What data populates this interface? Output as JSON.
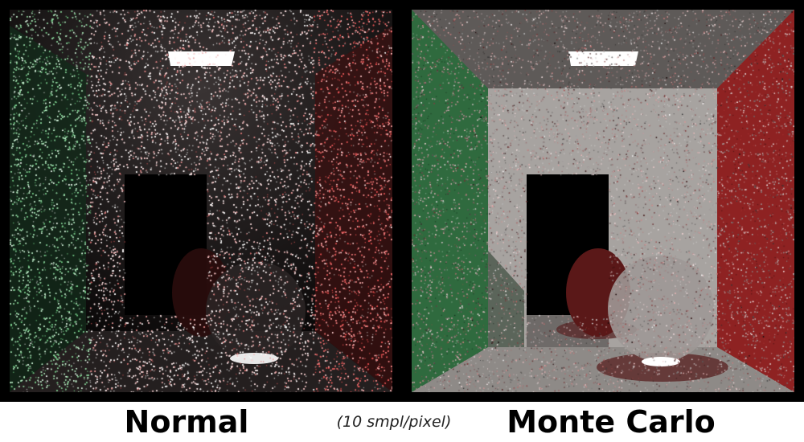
{
  "panels": [
    {
      "id": "left",
      "caption": "Normal"
    },
    {
      "id": "right",
      "caption": "Monte Carlo"
    }
  ],
  "note": "(10 smpl/pixel)",
  "colors": {
    "left_wall": "#2f6a3e",
    "right_wall": "#8e2222",
    "back_wall": "#a9a5a2",
    "light": "#ffffff",
    "background": "#000000"
  }
}
